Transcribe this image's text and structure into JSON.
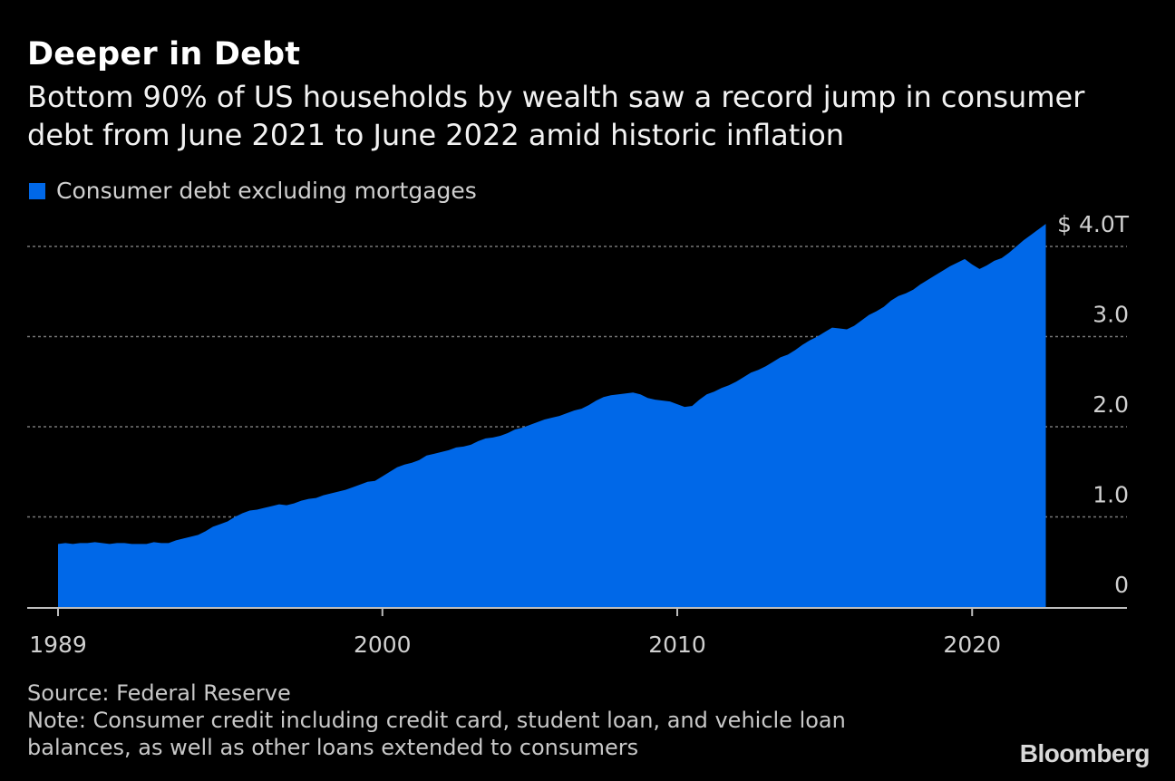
{
  "header": {
    "title": "Deeper in Debt",
    "subtitle": "Bottom 90% of US households by wealth saw a record jump in consumer debt from June 2021 to June 2022 amid historic inflation"
  },
  "legend": {
    "label": "Consumer debt excluding mortgages"
  },
  "colors": {
    "series": "#0068E8",
    "background": "#000000",
    "grid": "#777777",
    "axis": "#bdbdbd"
  },
  "chart_data": {
    "type": "area",
    "title": "Deeper in Debt",
    "series": [
      {
        "name": "Consumer debt excluding mortgages"
      }
    ],
    "ylabel": "",
    "xlabel": "",
    "xlim": [
      1989,
      2025
    ],
    "ylim": [
      0,
      4
    ],
    "y_ticks": [
      {
        "value": 0,
        "label": "0"
      },
      {
        "value": 1,
        "label": "1.0"
      },
      {
        "value": 2,
        "label": "2.0"
      },
      {
        "value": 3,
        "label": "3.0"
      },
      {
        "value": 4,
        "label": "$ 4.0T"
      }
    ],
    "x_ticks": [
      {
        "value": 1989,
        "label": "1989"
      },
      {
        "value": 2000,
        "label": "2000"
      },
      {
        "value": 2010,
        "label": "2010"
      },
      {
        "value": 2020,
        "label": "2020"
      }
    ],
    "points": [
      [
        1989.0,
        0.7
      ],
      [
        1989.25,
        0.71
      ],
      [
        1989.5,
        0.7
      ],
      [
        1989.75,
        0.71
      ],
      [
        1990.0,
        0.71
      ],
      [
        1990.25,
        0.72
      ],
      [
        1990.5,
        0.71
      ],
      [
        1990.75,
        0.7
      ],
      [
        1991.0,
        0.71
      ],
      [
        1991.25,
        0.71
      ],
      [
        1991.5,
        0.7
      ],
      [
        1991.75,
        0.7
      ],
      [
        1992.0,
        0.7
      ],
      [
        1992.25,
        0.72
      ],
      [
        1992.5,
        0.71
      ],
      [
        1992.75,
        0.71
      ],
      [
        1993.0,
        0.74
      ],
      [
        1993.25,
        0.76
      ],
      [
        1993.5,
        0.78
      ],
      [
        1993.75,
        0.8
      ],
      [
        1994.0,
        0.84
      ],
      [
        1994.25,
        0.89
      ],
      [
        1994.5,
        0.92
      ],
      [
        1994.75,
        0.95
      ],
      [
        1995.0,
        1.0
      ],
      [
        1995.25,
        1.04
      ],
      [
        1995.5,
        1.07
      ],
      [
        1995.75,
        1.08
      ],
      [
        1996.0,
        1.1
      ],
      [
        1996.25,
        1.12
      ],
      [
        1996.5,
        1.14
      ],
      [
        1996.75,
        1.13
      ],
      [
        1997.0,
        1.15
      ],
      [
        1997.25,
        1.18
      ],
      [
        1997.5,
        1.2
      ],
      [
        1997.75,
        1.21
      ],
      [
        1998.0,
        1.24
      ],
      [
        1998.25,
        1.26
      ],
      [
        1998.5,
        1.28
      ],
      [
        1998.75,
        1.3
      ],
      [
        1999.0,
        1.33
      ],
      [
        1999.25,
        1.36
      ],
      [
        1999.5,
        1.39
      ],
      [
        1999.75,
        1.4
      ],
      [
        2000.0,
        1.45
      ],
      [
        2000.25,
        1.5
      ],
      [
        2000.5,
        1.55
      ],
      [
        2000.75,
        1.58
      ],
      [
        2001.0,
        1.6
      ],
      [
        2001.25,
        1.63
      ],
      [
        2001.5,
        1.68
      ],
      [
        2001.75,
        1.7
      ],
      [
        2002.0,
        1.72
      ],
      [
        2002.25,
        1.74
      ],
      [
        2002.5,
        1.77
      ],
      [
        2002.75,
        1.78
      ],
      [
        2003.0,
        1.8
      ],
      [
        2003.25,
        1.84
      ],
      [
        2003.5,
        1.87
      ],
      [
        2003.75,
        1.88
      ],
      [
        2004.0,
        1.9
      ],
      [
        2004.25,
        1.93
      ],
      [
        2004.5,
        1.97
      ],
      [
        2004.75,
        1.99
      ],
      [
        2005.0,
        2.02
      ],
      [
        2005.25,
        2.05
      ],
      [
        2005.5,
        2.08
      ],
      [
        2005.75,
        2.1
      ],
      [
        2006.0,
        2.12
      ],
      [
        2006.25,
        2.15
      ],
      [
        2006.5,
        2.18
      ],
      [
        2006.75,
        2.2
      ],
      [
        2007.0,
        2.24
      ],
      [
        2007.25,
        2.29
      ],
      [
        2007.5,
        2.33
      ],
      [
        2007.75,
        2.35
      ],
      [
        2008.0,
        2.36
      ],
      [
        2008.25,
        2.37
      ],
      [
        2008.5,
        2.38
      ],
      [
        2008.75,
        2.36
      ],
      [
        2009.0,
        2.32
      ],
      [
        2009.25,
        2.3
      ],
      [
        2009.5,
        2.29
      ],
      [
        2009.75,
        2.28
      ],
      [
        2010.0,
        2.25
      ],
      [
        2010.25,
        2.22
      ],
      [
        2010.5,
        2.23
      ],
      [
        2010.75,
        2.3
      ],
      [
        2011.0,
        2.36
      ],
      [
        2011.25,
        2.39
      ],
      [
        2011.5,
        2.43
      ],
      [
        2011.75,
        2.46
      ],
      [
        2012.0,
        2.5
      ],
      [
        2012.25,
        2.55
      ],
      [
        2012.5,
        2.6
      ],
      [
        2012.75,
        2.63
      ],
      [
        2013.0,
        2.67
      ],
      [
        2013.25,
        2.72
      ],
      [
        2013.5,
        2.77
      ],
      [
        2013.75,
        2.8
      ],
      [
        2014.0,
        2.85
      ],
      [
        2014.25,
        2.91
      ],
      [
        2014.5,
        2.96
      ],
      [
        2014.75,
        3.0
      ],
      [
        2015.0,
        3.05
      ],
      [
        2015.25,
        3.1
      ],
      [
        2015.5,
        3.09
      ],
      [
        2015.75,
        3.08
      ],
      [
        2016.0,
        3.12
      ],
      [
        2016.25,
        3.18
      ],
      [
        2016.5,
        3.24
      ],
      [
        2016.75,
        3.28
      ],
      [
        2017.0,
        3.33
      ],
      [
        2017.25,
        3.4
      ],
      [
        2017.5,
        3.45
      ],
      [
        2017.75,
        3.48
      ],
      [
        2018.0,
        3.52
      ],
      [
        2018.25,
        3.58
      ],
      [
        2018.5,
        3.63
      ],
      [
        2018.75,
        3.68
      ],
      [
        2019.0,
        3.73
      ],
      [
        2019.25,
        3.78
      ],
      [
        2019.5,
        3.82
      ],
      [
        2019.75,
        3.86
      ],
      [
        2020.0,
        3.8
      ],
      [
        2020.25,
        3.75
      ],
      [
        2020.5,
        3.79
      ],
      [
        2020.75,
        3.84
      ],
      [
        2021.0,
        3.87
      ],
      [
        2021.25,
        3.93
      ],
      [
        2021.5,
        4.0
      ],
      [
        2021.75,
        4.07
      ],
      [
        2022.0,
        4.13
      ],
      [
        2022.25,
        4.19
      ],
      [
        2022.5,
        4.25
      ]
    ]
  },
  "footer": {
    "source": "Source: Federal Reserve",
    "note": "Note: Consumer credit including credit card, student loan, and vehicle loan balances, as well as other loans extended to consumers"
  },
  "branding": {
    "logo": "Bloomberg"
  }
}
